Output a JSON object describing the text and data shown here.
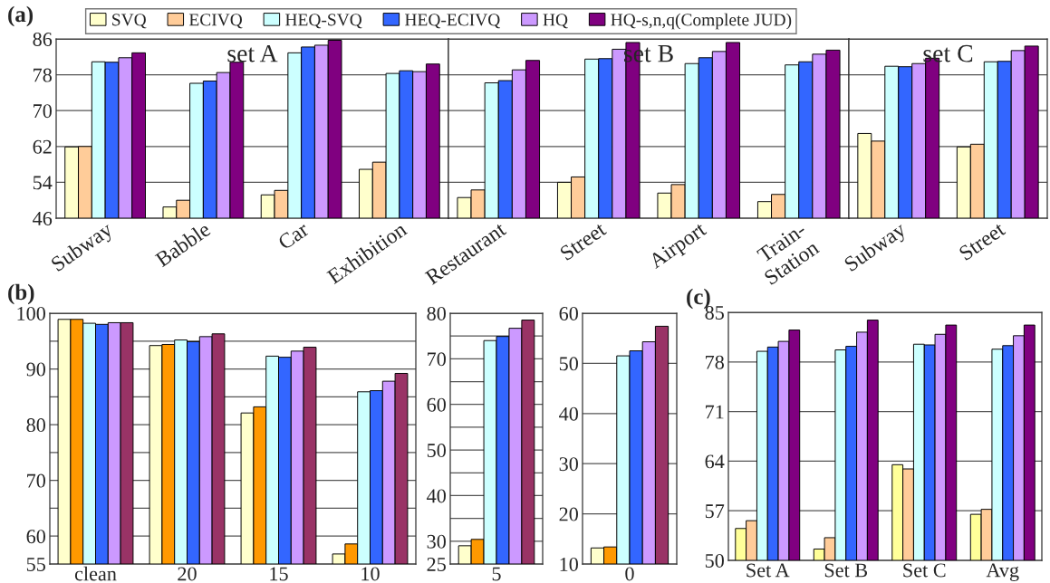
{
  "chart_data": [
    {
      "type": "bar",
      "title": "set A",
      "annotations": [
        "(a)"
      ],
      "categories": [
        "Subway",
        "Babble",
        "Car",
        "Exhibition"
      ],
      "ylim": [
        46,
        86
      ],
      "yticks": [
        46,
        54,
        62,
        70,
        78,
        86
      ],
      "grid": "y",
      "legend": "top",
      "series": [
        {
          "name": "SVQ",
          "color": "#ffffcc",
          "values": [
            61.9,
            48.5,
            51.2,
            56.9
          ]
        },
        {
          "name": "ECIVQ",
          "color": "#ffcc99",
          "values": [
            62.0,
            50.0,
            52.2,
            58.5
          ]
        },
        {
          "name": "HEQ-SVQ",
          "color": "#ccffff",
          "values": [
            80.9,
            76.1,
            82.9,
            78.3
          ]
        },
        {
          "name": "HEQ-ECIVQ",
          "color": "#3366ff",
          "values": [
            80.8,
            76.6,
            84.2,
            78.9
          ]
        },
        {
          "name": "HQ",
          "color": "#cc99ff",
          "values": [
            81.8,
            78.5,
            84.6,
            78.7
          ]
        },
        {
          "name": "HQ-s,n,q(Complete JUD)",
          "color": "#800080",
          "values": [
            82.9,
            80.8,
            85.7,
            80.4
          ]
        }
      ]
    },
    {
      "type": "bar",
      "title": "set B",
      "categories": [
        "Restaurant",
        "Street",
        "Airport",
        "Train-\nStation"
      ],
      "ylim": [
        46,
        86
      ],
      "yticks": [
        46,
        54,
        62,
        70,
        78,
        86
      ],
      "grid": "y",
      "tick_labels": "x",
      "series": [
        {
          "color": "#ffffcc",
          "values": [
            50.6,
            54.0,
            51.6,
            49.7
          ]
        },
        {
          "color": "#ffcc99",
          "values": [
            52.3,
            55.2,
            53.5,
            51.3
          ]
        },
        {
          "color": "#ccffff",
          "values": [
            76.2,
            81.5,
            80.5,
            80.2
          ]
        },
        {
          "color": "#3366ff",
          "values": [
            76.7,
            81.6,
            81.8,
            80.9
          ]
        },
        {
          "color": "#cc99ff",
          "values": [
            79.1,
            83.7,
            83.2,
            82.6
          ]
        },
        {
          "color": "#800080",
          "values": [
            81.2,
            85.2,
            85.2,
            83.5
          ]
        }
      ]
    },
    {
      "type": "bar",
      "title": "set C",
      "categories": [
        "Subway",
        "Street"
      ],
      "ylim": [
        46,
        86
      ],
      "yticks": [
        46,
        54,
        62,
        70,
        78,
        86
      ],
      "grid": "y",
      "tick_labels": "x",
      "series": [
        {
          "color": "#ffffcc",
          "values": [
            64.9,
            61.9
          ]
        },
        {
          "color": "#ffcc99",
          "values": [
            63.2,
            62.5
          ]
        },
        {
          "color": "#ccffff",
          "values": [
            79.9,
            80.9
          ]
        },
        {
          "color": "#3366ff",
          "values": [
            79.8,
            81.0
          ]
        },
        {
          "color": "#cc99ff",
          "values": [
            80.5,
            83.4
          ]
        },
        {
          "color": "#800080",
          "values": [
            81.7,
            84.4
          ]
        }
      ]
    },
    {
      "type": "bar",
      "annotations": [
        "(b)"
      ],
      "categories": [
        "clean",
        "20",
        "15",
        "10"
      ],
      "ylim": [
        55,
        100
      ],
      "yticks": [
        55,
        60,
        {
          "value": 65,
          "label": null
        },
        70,
        {
          "value": 75,
          "label": null
        },
        80,
        {
          "value": 85,
          "label": null
        },
        90,
        {
          "value": 95,
          "label": null
        },
        100
      ],
      "grid": "y",
      "series": [
        {
          "color": "#ffffcc",
          "values": [
            98.9,
            94.2,
            82.1,
            56.8
          ]
        },
        {
          "color": "#ff9900",
          "values": [
            98.9,
            94.4,
            83.2,
            58.6
          ]
        },
        {
          "color": "#ccffff",
          "values": [
            98.2,
            95.2,
            92.3,
            85.9
          ]
        },
        {
          "color": "#3366ff",
          "values": [
            98.0,
            94.9,
            92.1,
            86.1
          ]
        },
        {
          "color": "#cc99ff",
          "values": [
            98.3,
            95.8,
            93.2,
            87.8
          ]
        },
        {
          "color": "#993366",
          "values": [
            98.3,
            96.3,
            93.9,
            89.2
          ]
        }
      ]
    },
    {
      "type": "bar",
      "categories": [
        "5"
      ],
      "ylim": [
        25,
        80
      ],
      "yticks": [
        25,
        30,
        {
          "value": 35,
          "label": null
        },
        40,
        {
          "value": 45,
          "label": null
        },
        50,
        {
          "value": 55,
          "label": null
        },
        60,
        {
          "value": 65,
          "label": null
        },
        70,
        {
          "value": 75,
          "label": null
        },
        80
      ],
      "grid": "y",
      "series": [
        {
          "color": "#ffffcc",
          "values": [
            29.0
          ]
        },
        {
          "color": "#ff9900",
          "values": [
            30.4
          ]
        },
        {
          "color": "#ccffff",
          "values": [
            74.0
          ]
        },
        {
          "color": "#3366ff",
          "values": [
            74.9
          ]
        },
        {
          "color": "#cc99ff",
          "values": [
            76.7
          ]
        },
        {
          "color": "#993366",
          "values": [
            78.5
          ]
        }
      ]
    },
    {
      "type": "bar",
      "categories": [
        "0"
      ],
      "ylim": [
        10,
        60
      ],
      "yticks": [
        10,
        20,
        30,
        40,
        50,
        60
      ],
      "grid": "y",
      "series": [
        {
          "color": "#ffffcc",
          "values": [
            13.2
          ]
        },
        {
          "color": "#ff9900",
          "values": [
            13.4
          ]
        },
        {
          "color": "#ccffff",
          "values": [
            51.5
          ]
        },
        {
          "color": "#3366ff",
          "values": [
            52.5
          ]
        },
        {
          "color": "#cc99ff",
          "values": [
            54.3
          ]
        },
        {
          "color": "#993366",
          "values": [
            57.4
          ]
        }
      ]
    },
    {
      "type": "bar",
      "annotations": [
        "(c)"
      ],
      "categories": [
        "Set A",
        "Set B",
        "Set C",
        "Avg"
      ],
      "ylim": [
        50,
        85
      ],
      "yticks": [
        50,
        57,
        64,
        71,
        78,
        85
      ],
      "grid": "y",
      "series": [
        {
          "color": "#ffff99",
          "values": [
            54.5,
            51.6,
            63.5,
            56.5
          ]
        },
        {
          "color": "#ffcc99",
          "values": [
            55.6,
            53.2,
            62.9,
            57.2
          ]
        },
        {
          "color": "#ccffff",
          "values": [
            79.5,
            79.7,
            80.5,
            79.8
          ]
        },
        {
          "color": "#3366ff",
          "values": [
            80.1,
            80.2,
            80.4,
            80.3
          ]
        },
        {
          "color": "#cc99ff",
          "values": [
            80.9,
            82.2,
            81.9,
            81.7
          ]
        },
        {
          "color": "#800080",
          "values": [
            82.5,
            83.9,
            83.2,
            83.2
          ]
        }
      ]
    }
  ]
}
